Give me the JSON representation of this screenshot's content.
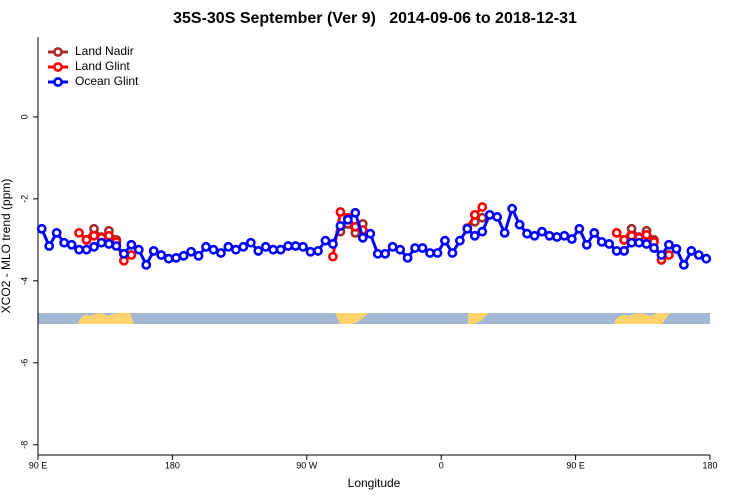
{
  "chart_data": {
    "type": "line",
    "title": "35S-30S September (Ver 9)   2014-09-06 to 2018-12-31",
    "x_label": "Longitude",
    "y_label": "XCO2 - MLO trend (ppm)",
    "x": [
      92.5,
      97.5,
      102.5,
      107.5,
      112.5,
      117.5,
      122.5,
      127.5,
      132.5,
      137.5,
      142.5,
      147.5,
      152.5,
      157.5,
      162.5,
      167.5,
      172.5,
      177.5,
      182.5,
      187.5,
      192.5,
      197.5,
      202.5,
      207.5,
      212.5,
      217.5,
      222.5,
      227.5,
      232.5,
      237.5,
      242.5,
      247.5,
      252.5,
      257.5,
      262.5,
      267.5,
      272.5,
      277.5,
      282.5,
      287.5,
      292.5,
      297.5,
      302.5,
      307.5,
      312.5,
      317.5,
      322.5,
      327.5,
      332.5,
      337.5,
      342.5,
      347.5,
      352.5,
      357.5,
      362.5,
      367.5,
      372.5,
      377.5,
      382.5,
      387.5,
      392.5,
      397.5,
      402.5,
      407.5,
      412.5,
      417.5,
      422.5,
      427.5,
      432.5,
      437.5,
      442.5,
      447.5,
      452.5,
      457.5,
      462.5,
      467.5,
      472.5,
      477.5,
      482.5,
      487.5,
      492.5,
      497.5,
      502.5,
      507.5,
      512.5,
      517.5,
      522.5,
      527.5,
      532.5,
      537.5
    ],
    "series": [
      {
        "name": "Land Nadir",
        "color": "#a52a2a",
        "values": [
          null,
          null,
          null,
          null,
          null,
          null,
          -3.0,
          -2.73,
          -2.93,
          -2.78,
          -3.0,
          null,
          null,
          null,
          null,
          null,
          null,
          null,
          null,
          null,
          null,
          null,
          null,
          null,
          null,
          null,
          null,
          null,
          null,
          null,
          null,
          null,
          null,
          null,
          null,
          null,
          null,
          null,
          null,
          null,
          -2.8,
          -2.61,
          -2.83,
          -2.61,
          null,
          null,
          null,
          null,
          null,
          null,
          null,
          null,
          null,
          null,
          null,
          null,
          null,
          null,
          -2.56,
          -2.46,
          null,
          null,
          null,
          null,
          null,
          null,
          null,
          null,
          null,
          null,
          null,
          null,
          null,
          null,
          null,
          null,
          null,
          null,
          -3.0,
          -2.73,
          -2.93,
          -2.78,
          -3.0,
          null,
          null,
          null,
          null,
          null,
          null,
          null
        ]
      },
      {
        "name": "Land Glint",
        "color": "#ff0000",
        "values": [
          null,
          null,
          null,
          null,
          null,
          -2.83,
          -3.0,
          -2.9,
          -2.95,
          -2.9,
          -3.05,
          -3.51,
          -3.37,
          null,
          null,
          null,
          null,
          null,
          null,
          null,
          null,
          null,
          null,
          null,
          null,
          null,
          null,
          null,
          null,
          null,
          null,
          null,
          null,
          null,
          null,
          null,
          null,
          null,
          null,
          -3.41,
          -2.32,
          -2.46,
          -2.68,
          -2.76,
          null,
          null,
          null,
          null,
          null,
          null,
          null,
          null,
          null,
          null,
          null,
          null,
          null,
          -2.71,
          -2.39,
          -2.2,
          null,
          null,
          null,
          null,
          null,
          null,
          null,
          null,
          null,
          null,
          null,
          null,
          null,
          null,
          null,
          null,
          null,
          -2.83,
          -3.0,
          -2.9,
          -2.95,
          -2.88,
          -3.05,
          -3.49,
          -3.37,
          null,
          null,
          null,
          null,
          null
        ]
      },
      {
        "name": "Ocean Glint",
        "color": "#0000ff",
        "values": [
          -2.73,
          -3.15,
          -2.83,
          -3.07,
          -3.12,
          -3.24,
          -3.24,
          -3.17,
          -3.07,
          -3.1,
          -3.15,
          -3.34,
          -3.12,
          -3.24,
          -3.61,
          -3.27,
          -3.37,
          -3.46,
          -3.44,
          -3.39,
          -3.29,
          -3.39,
          -3.17,
          -3.24,
          -3.32,
          -3.17,
          -3.24,
          -3.17,
          -3.07,
          -3.27,
          -3.17,
          -3.24,
          -3.24,
          -3.15,
          -3.15,
          -3.17,
          -3.29,
          -3.27,
          -3.02,
          -3.1,
          -2.66,
          -2.51,
          -2.34,
          -2.95,
          -2.85,
          -3.34,
          -3.34,
          -3.17,
          -3.24,
          -3.44,
          -3.2,
          -3.2,
          -3.32,
          -3.32,
          -3.02,
          -3.32,
          -3.02,
          -2.73,
          -2.9,
          -2.8,
          -2.39,
          -2.44,
          -2.83,
          -2.24,
          -2.63,
          -2.85,
          -2.9,
          -2.8,
          -2.9,
          -2.93,
          -2.9,
          -2.98,
          -2.73,
          -3.12,
          -2.83,
          -3.05,
          -3.1,
          -3.27,
          -3.27,
          -3.07,
          -3.07,
          -3.1,
          -3.2,
          -3.37,
          -3.12,
          -3.22,
          -3.61,
          -3.27,
          -3.37,
          -3.46
        ]
      }
    ],
    "xlim": [
      90,
      540
    ],
    "xticks": [
      {
        "value": 90,
        "label": "90 E"
      },
      180,
      {
        "value": 270,
        "label": "90 W"
      },
      {
        "value": 360,
        "label": "0"
      },
      {
        "value": 450,
        "label": "90 E"
      },
      {
        "value": 540,
        "label": "180"
      }
    ],
    "ylim": [
      -8.25,
      1.95
    ],
    "yticks": [
      0,
      -2,
      -4,
      -6,
      -8
    ],
    "legend": "top-left",
    "grid": false
  }
}
